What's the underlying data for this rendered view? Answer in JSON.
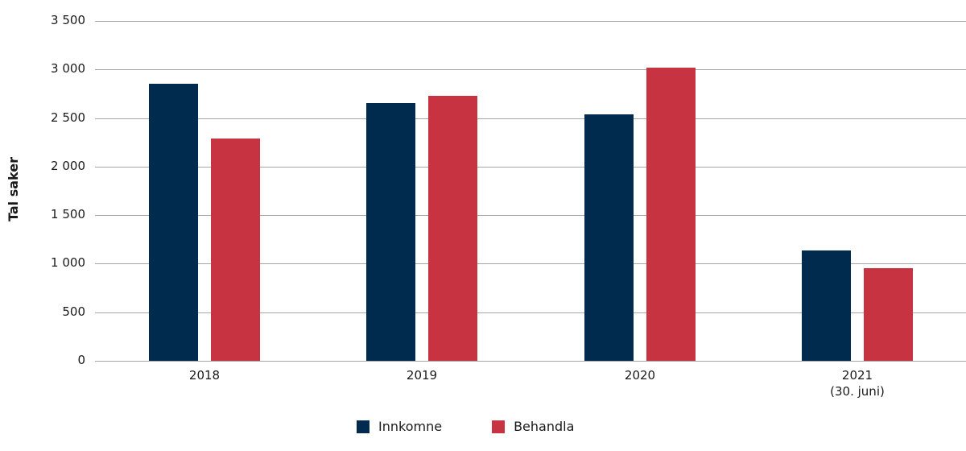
{
  "chart_data": {
    "type": "bar",
    "title": "",
    "xlabel": "",
    "ylabel": "Tal saker",
    "ylim": [
      0,
      3500
    ],
    "yticks": [
      0,
      500,
      1000,
      1500,
      2000,
      2500,
      3000,
      3500
    ],
    "ytick_labels": [
      "0",
      "500",
      "1 000",
      "1 500",
      "2 000",
      "2 500",
      "3 000",
      "3 500"
    ],
    "categories": [
      "2018",
      "2019",
      "2020",
      "2021 (30. juni)"
    ],
    "category_lines": [
      [
        "2018"
      ],
      [
        "2019"
      ],
      [
        "2020"
      ],
      [
        "2021",
        "(30. juni)"
      ]
    ],
    "series": [
      {
        "name": "Innkomne",
        "color": "#002b4f",
        "values": [
          2850,
          2650,
          2540,
          1140
        ]
      },
      {
        "name": "Behandla",
        "color": "#c73340",
        "values": [
          2290,
          2730,
          3020,
          950
        ]
      }
    ],
    "grid": true,
    "legend_position": "bottom"
  }
}
